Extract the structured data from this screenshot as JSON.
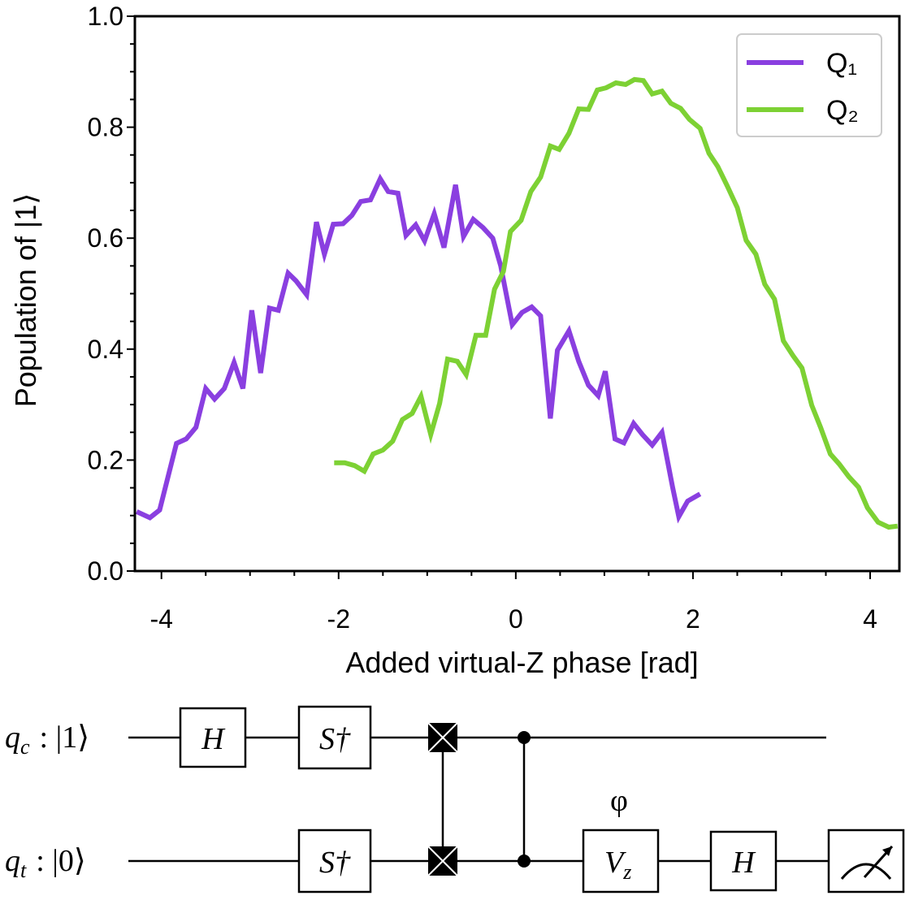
{
  "chart_data": {
    "type": "line",
    "xlabel": "Added virtual-Z phase [rad]",
    "ylabel": "Population of |1⟩",
    "xlim": [
      -4.3,
      4.33
    ],
    "ylim": [
      0,
      1
    ],
    "xticks": [
      -4,
      -2,
      0,
      2,
      4
    ],
    "xminorticks": [
      -3.5,
      -3,
      -2.5,
      -1.5,
      -1,
      -0.5,
      0.5,
      1,
      1.5,
      2.5,
      3,
      3.5
    ],
    "yticks": [
      {
        "value": 0,
        "label": "0.0"
      },
      0.2,
      0.4,
      0.6,
      0.8,
      {
        "value": 1,
        "label": "1.0"
      }
    ],
    "yminorticks": [
      0.05,
      0.1,
      0.15,
      0.25,
      0.3,
      0.35,
      0.45,
      0.5,
      0.55,
      0.65,
      0.7,
      0.75,
      0.85,
      0.9,
      0.95
    ],
    "legend": "upper right",
    "series": [
      {
        "name": "Q₁",
        "color": "#8a3fe0",
        "x": [
          -4.28,
          -4.13,
          -4.02,
          -3.83,
          -3.72,
          -3.61,
          -3.5,
          -3.4,
          -3.29,
          -3.18,
          -3.08,
          -2.98,
          -2.88,
          -2.78,
          -2.68,
          -2.57,
          -2.48,
          -2.36,
          -2.25,
          -2.16,
          -2.06,
          -1.95,
          -1.85,
          -1.75,
          -1.64,
          -1.53,
          -1.44,
          -1.33,
          -1.24,
          -1.13,
          -1.03,
          -0.92,
          -0.81,
          -0.68,
          -0.59,
          -0.48,
          -0.37,
          -0.26,
          -0.17,
          -0.04,
          0.07,
          0.18,
          0.28,
          0.39,
          0.47,
          0.6,
          0.71,
          0.82,
          0.93,
          1.01,
          1.12,
          1.22,
          1.33,
          1.43,
          1.54,
          1.65,
          1.77,
          1.84,
          1.94,
          2.08
        ],
        "values": [
          0.107,
          0.096,
          0.11,
          0.23,
          0.238,
          0.259,
          0.329,
          0.31,
          0.329,
          0.376,
          0.329,
          0.47,
          0.357,
          0.474,
          0.47,
          0.537,
          0.523,
          0.498,
          0.629,
          0.571,
          0.625,
          0.626,
          0.641,
          0.666,
          0.669,
          0.707,
          0.684,
          0.681,
          0.605,
          0.624,
          0.595,
          0.644,
          0.583,
          0.696,
          0.603,
          0.634,
          0.619,
          0.6,
          0.55,
          0.444,
          0.466,
          0.476,
          0.46,
          0.275,
          0.398,
          0.433,
          0.378,
          0.335,
          0.316,
          0.36,
          0.238,
          0.231,
          0.266,
          0.246,
          0.227,
          0.25,
          0.151,
          0.098,
          0.126,
          0.139
        ]
      },
      {
        "name": "Q₂",
        "color": "#7dd134",
        "x": [
          -2.05,
          -1.93,
          -1.82,
          -1.71,
          -1.61,
          -1.5,
          -1.39,
          -1.28,
          -1.17,
          -1.07,
          -0.96,
          -0.86,
          -0.77,
          -0.66,
          -0.56,
          -0.45,
          -0.34,
          -0.24,
          -0.14,
          -0.06,
          0.06,
          0.17,
          0.28,
          0.39,
          0.49,
          0.6,
          0.71,
          0.82,
          0.92,
          1.02,
          1.13,
          1.24,
          1.34,
          1.44,
          1.54,
          1.65,
          1.75,
          1.86,
          1.96,
          2.08,
          2.18,
          2.28,
          2.39,
          2.5,
          2.6,
          2.71,
          2.81,
          2.92,
          3.02,
          3.13,
          3.23,
          3.34,
          3.44,
          3.55,
          3.65,
          3.76,
          3.87,
          3.97,
          4.09,
          4.21,
          4.31
        ],
        "values": [
          0.195,
          0.195,
          0.19,
          0.18,
          0.211,
          0.218,
          0.234,
          0.273,
          0.284,
          0.315,
          0.246,
          0.302,
          0.382,
          0.378,
          0.354,
          0.425,
          0.425,
          0.508,
          0.54,
          0.612,
          0.632,
          0.684,
          0.71,
          0.766,
          0.76,
          0.789,
          0.833,
          0.832,
          0.867,
          0.871,
          0.88,
          0.877,
          0.886,
          0.884,
          0.86,
          0.865,
          0.843,
          0.834,
          0.814,
          0.798,
          0.753,
          0.729,
          0.693,
          0.655,
          0.596,
          0.571,
          0.517,
          0.49,
          0.415,
          0.388,
          0.366,
          0.299,
          0.259,
          0.211,
          0.193,
          0.17,
          0.151,
          0.114,
          0.088,
          0.079,
          0.081
        ]
      }
    ]
  },
  "circuit": {
    "qubits": [
      {
        "symbol": "q",
        "sub": "c",
        "state": ": |1⟩"
      },
      {
        "symbol": "q",
        "sub": "t",
        "state": ": |0⟩"
      }
    ],
    "gates": {
      "h_top": "H",
      "sdg_top": "S†",
      "sdg_bottom": "S†",
      "vz": {
        "symbol": "V",
        "sub": "z"
      },
      "phase": "φ",
      "h_bottom": "H"
    }
  }
}
